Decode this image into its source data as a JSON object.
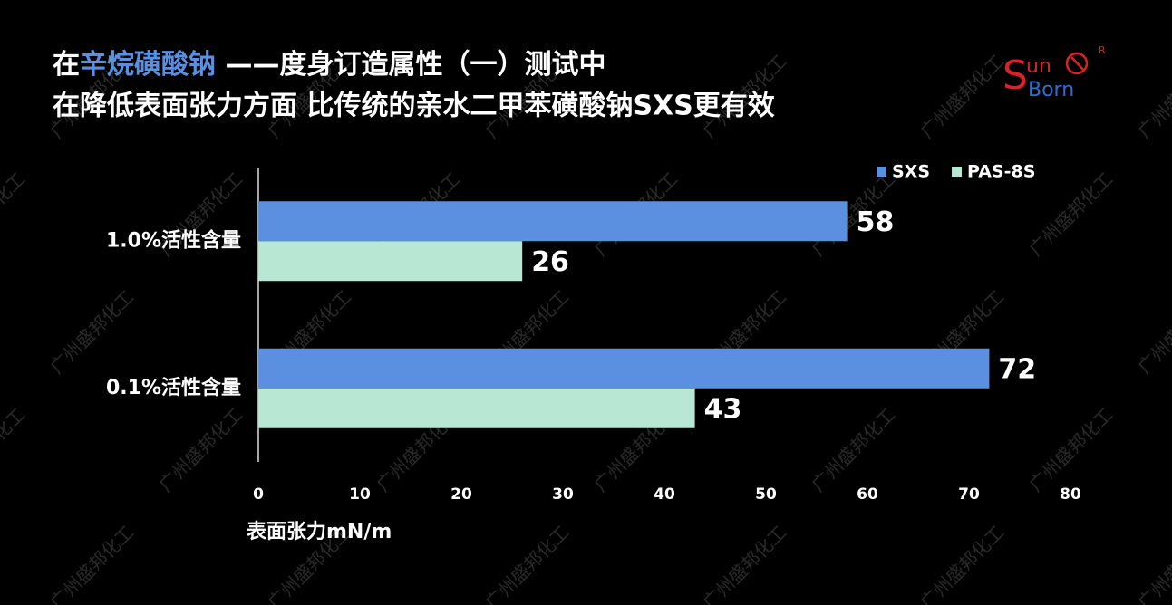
{
  "header": {
    "title_line1": [
      "在",
      "辛烷磺酸钠",
      " ——度身订造属性（一）测试中"
    ],
    "title_line2": "在降低表面张力方面 比传统的亲水二甲苯磺酸钠SXS更有效"
  },
  "logo": {
    "s": "S",
    "un": "un",
    "born": "Born",
    "mark": "R"
  },
  "watermark": "广州盛邦化工",
  "chart_data": {
    "type": "bar",
    "orientation": "horizontal",
    "categories": [
      "1.0%活性含量",
      "0.1%活性含量"
    ],
    "series": [
      {
        "name": "SXS",
        "color": "#5b8fe0",
        "values": [
          58,
          72
        ]
      },
      {
        "name": "PAS-8S",
        "color": "#b8e8d4",
        "values": [
          26,
          43
        ]
      }
    ],
    "xlim": [
      0,
      80
    ],
    "xticks": [
      0,
      10,
      20,
      30,
      40,
      50,
      60,
      70,
      80
    ],
    "x_label": "表面张力mN/m",
    "grid": false,
    "legend": "top-right",
    "data_labels": true
  }
}
